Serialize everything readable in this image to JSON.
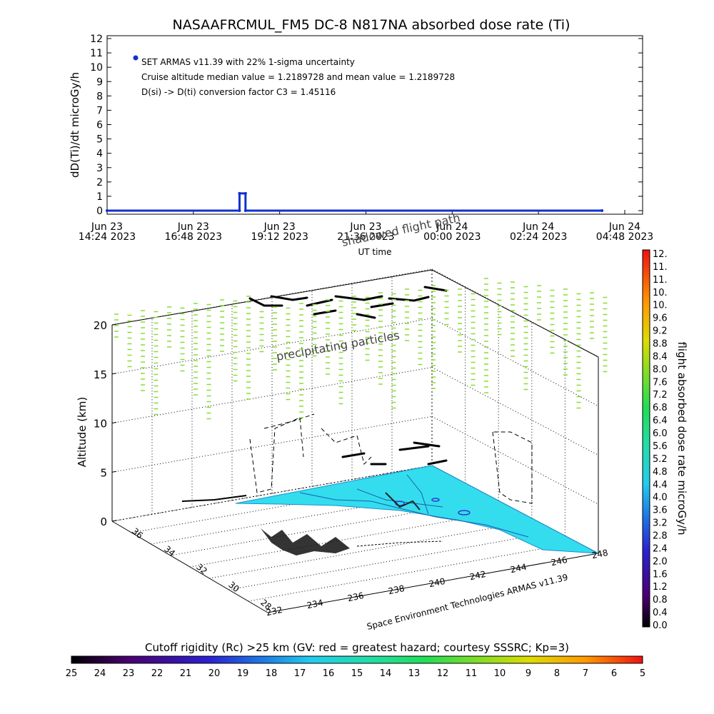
{
  "chart_data": [
    {
      "type": "line",
      "title": "NASAAFRCMUL_FM5 DC-8   N817NA absorbed dose rate (Ti)",
      "ylabel": "dD(Ti)/dt microGy/h",
      "xlabel": "UT time",
      "ylim": [
        0,
        12
      ],
      "yticks": [
        "0",
        "1",
        "2",
        "3",
        "4",
        "5",
        "6",
        "7",
        "8",
        "9",
        "10",
        "11",
        "12"
      ],
      "xticks": [
        {
          "line1": "Jun 23",
          "line2": "14:24 2023"
        },
        {
          "line1": "Jun 23",
          "line2": "16:48 2023"
        },
        {
          "line1": "Jun 23",
          "line2": "19:12 2023"
        },
        {
          "line1": "Jun 23",
          "line2": "21:36 2023"
        },
        {
          "line1": "Jun 24",
          "line2": "00:00 2023"
        },
        {
          "line1": "Jun 24",
          "line2": "02:24 2023"
        },
        {
          "line1": "Jun 24",
          "line2": "04:48 2023"
        }
      ],
      "series_color": "#1030d0",
      "series": [
        {
          "x": [
            "2023-06-23 14:24",
            "2023-06-23 18:05",
            "2023-06-23 18:05",
            "2023-06-23 18:15",
            "2023-06-23 18:15",
            "2023-06-24 04:10"
          ],
          "values": [
            0,
            0,
            1.2,
            1.2,
            0,
            0
          ]
        }
      ],
      "legend_marker": "dot",
      "annotations": [
        "SET ARMAS v11.39 with 22% 1-sigma uncertainty",
        "Cruise altitude median value = 1.2189728 and mean value = 1.2189728",
        "D(si) -> D(ti) conversion factor C3 = 1.45116"
      ],
      "grid": false
    },
    {
      "type": "scatter",
      "zlabel": "Altitude (km)",
      "zticks": [
        "0",
        "5",
        "10",
        "15",
        "20"
      ],
      "y_ticks": [
        "36",
        "34",
        "32",
        "30",
        "28"
      ],
      "x_ticks": [
        "232",
        "234",
        "236",
        "238",
        "240",
        "242",
        "244",
        "246",
        "248"
      ],
      "annotations": [
        "shadowed flight path",
        "precipitating particles",
        "Space Environment Technologies ARMAS v11.39"
      ],
      "grid": true
    },
    {
      "type": "heatmap",
      "label": "flight absorbed dose rate microGy/h",
      "ticks": [
        "12.",
        "11.",
        "11.",
        "10.",
        "10.",
        "9.6",
        "9.2",
        "8.8",
        "8.4",
        "8.0",
        "7.6",
        "7.2",
        "6.8",
        "6.4",
        "6.0",
        "5.6",
        "5.2",
        "4.8",
        "4.4",
        "4.0",
        "3.6",
        "3.2",
        "2.8",
        "2.4",
        "2.0",
        "1.6",
        "1.2",
        "0.8",
        "0.4",
        "0.0"
      ]
    },
    {
      "type": "heatmap",
      "label": "Cutoff rigidity (Rc) >25 km (GV: red = greatest hazard; courtesy SSSRC; Kp=3)",
      "ticks": [
        "25",
        "24",
        "23",
        "22",
        "21",
        "20",
        "19",
        "18",
        "17",
        "16",
        "15",
        "14",
        "13",
        "12",
        "11",
        "10",
        "9",
        "8",
        "7",
        "6",
        "5"
      ]
    }
  ],
  "colors": {
    "series": "#1030d0",
    "particles": "#88dd33",
    "surface": "#33ddee",
    "surface_dark": "#2b7fd9"
  }
}
